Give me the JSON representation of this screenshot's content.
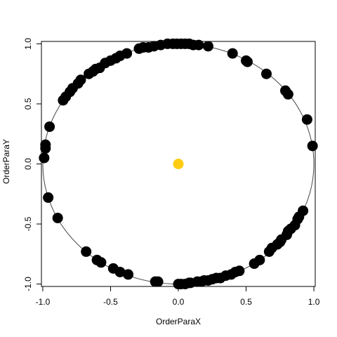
{
  "chart_data": {
    "type": "scatter",
    "title": "",
    "xlabel": "OrderParaX",
    "ylabel": "OrderParaY",
    "xlim": [
      -1.01,
      1.01
    ],
    "ylim": [
      -1.02,
      1.02
    ],
    "x_ticks": [
      -1.0,
      -0.5,
      0.0,
      0.5,
      1.0
    ],
    "x_tick_labels": [
      "-1.0",
      "-0.5",
      "0.0",
      "0.5",
      "1.0"
    ],
    "y_ticks": [
      -1.0,
      -0.5,
      0.0,
      0.5,
      1.0
    ],
    "y_tick_labels": [
      "-1.0",
      "-0.5",
      "0.0",
      "0.5",
      "1.0"
    ],
    "grid": false,
    "reference_circle": {
      "center": [
        0,
        0
      ],
      "radius": 1,
      "color": "#444444"
    },
    "points": [
      {
        "x": -0.99,
        "y": 0.05
      },
      {
        "x": -0.98,
        "y": 0.13
      },
      {
        "x": -0.98,
        "y": 0.16
      },
      {
        "x": -0.95,
        "y": 0.31
      },
      {
        "x": -0.85,
        "y": 0.53
      },
      {
        "x": -0.83,
        "y": 0.56
      },
      {
        "x": -0.8,
        "y": 0.6
      },
      {
        "x": -0.78,
        "y": 0.63
      },
      {
        "x": -0.74,
        "y": 0.67
      },
      {
        "x": -0.72,
        "y": 0.7
      },
      {
        "x": -0.66,
        "y": 0.75
      },
      {
        "x": -0.63,
        "y": 0.77
      },
      {
        "x": -0.61,
        "y": 0.79
      },
      {
        "x": -0.58,
        "y": 0.8
      },
      {
        "x": -0.54,
        "y": 0.84
      },
      {
        "x": -0.5,
        "y": 0.86
      },
      {
        "x": -0.46,
        "y": 0.88
      },
      {
        "x": -0.43,
        "y": 0.9
      },
      {
        "x": -0.38,
        "y": 0.92
      },
      {
        "x": -0.29,
        "y": 0.96
      },
      {
        "x": -0.26,
        "y": 0.97
      },
      {
        "x": -0.22,
        "y": 0.97
      },
      {
        "x": -0.18,
        "y": 0.98
      },
      {
        "x": -0.13,
        "y": 0.99
      },
      {
        "x": -0.08,
        "y": 1.0
      },
      {
        "x": -0.04,
        "y": 1.0
      },
      {
        "x": -0.01,
        "y": 1.0
      },
      {
        "x": 0.02,
        "y": 1.0
      },
      {
        "x": 0.05,
        "y": 1.0
      },
      {
        "x": 0.08,
        "y": 1.0
      },
      {
        "x": 0.11,
        "y": 0.99
      },
      {
        "x": 0.15,
        "y": 0.99
      },
      {
        "x": 0.22,
        "y": 0.98
      },
      {
        "x": 0.4,
        "y": 0.92
      },
      {
        "x": 0.5,
        "y": 0.86
      },
      {
        "x": 0.51,
        "y": 0.85
      },
      {
        "x": 0.65,
        "y": 0.75
      },
      {
        "x": 0.79,
        "y": 0.61
      },
      {
        "x": 0.81,
        "y": 0.58
      },
      {
        "x": 0.95,
        "y": 0.37
      },
      {
        "x": 0.99,
        "y": 0.15
      },
      {
        "x": -0.96,
        "y": -0.28
      },
      {
        "x": -0.89,
        "y": -0.45
      },
      {
        "x": -0.68,
        "y": -0.73
      },
      {
        "x": -0.6,
        "y": -0.8
      },
      {
        "x": -0.57,
        "y": -0.82
      },
      {
        "x": -0.48,
        "y": -0.87
      },
      {
        "x": -0.43,
        "y": -0.9
      },
      {
        "x": -0.37,
        "y": -0.92
      },
      {
        "x": -0.17,
        "y": -0.98
      },
      {
        "x": -0.15,
        "y": -0.98
      },
      {
        "x": 0.0,
        "y": -1.0
      },
      {
        "x": 0.02,
        "y": -1.0
      },
      {
        "x": 0.05,
        "y": -1.0
      },
      {
        "x": 0.08,
        "y": -0.99
      },
      {
        "x": 0.09,
        "y": -0.99
      },
      {
        "x": 0.14,
        "y": -0.98
      },
      {
        "x": 0.17,
        "y": -0.98
      },
      {
        "x": 0.19,
        "y": -0.97
      },
      {
        "x": 0.22,
        "y": -0.97
      },
      {
        "x": 0.25,
        "y": -0.96
      },
      {
        "x": 0.28,
        "y": -0.95
      },
      {
        "x": 0.31,
        "y": -0.95
      },
      {
        "x": 0.35,
        "y": -0.93
      },
      {
        "x": 0.39,
        "y": -0.92
      },
      {
        "x": 0.42,
        "y": -0.9
      },
      {
        "x": 0.45,
        "y": -0.89
      },
      {
        "x": 0.56,
        "y": -0.83
      },
      {
        "x": 0.6,
        "y": -0.8
      },
      {
        "x": 0.67,
        "y": -0.73
      },
      {
        "x": 0.69,
        "y": -0.7
      },
      {
        "x": 0.73,
        "y": -0.67
      },
      {
        "x": 0.75,
        "y": -0.65
      },
      {
        "x": 0.76,
        "y": -0.63
      },
      {
        "x": 0.8,
        "y": -0.59
      },
      {
        "x": 0.81,
        "y": -0.56
      },
      {
        "x": 0.83,
        "y": -0.54
      },
      {
        "x": 0.86,
        "y": -0.51
      },
      {
        "x": 0.88,
        "y": -0.46
      },
      {
        "x": 0.89,
        "y": -0.44
      },
      {
        "x": 0.92,
        "y": -0.39
      }
    ],
    "point_color": "#000000",
    "center_point": {
      "x": 0.0,
      "y": 0.0,
      "color": "#ffcc11"
    }
  }
}
